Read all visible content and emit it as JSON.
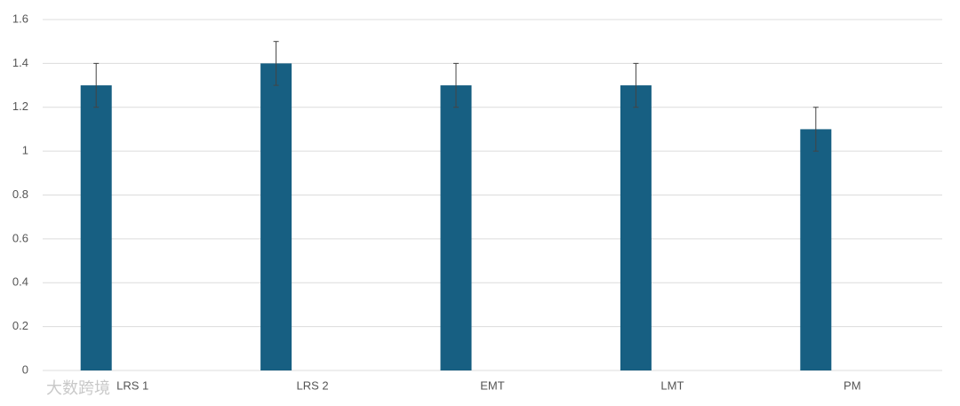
{
  "chart_data": {
    "type": "bar",
    "categories": [
      "LRS 1",
      "LRS 2",
      "EMT",
      "LMT",
      "PM"
    ],
    "values": [
      1.3,
      1.4,
      1.3,
      1.3,
      1.1
    ],
    "errors": [
      0.1,
      0.1,
      0.1,
      0.1,
      0.1
    ],
    "color": "#175f82",
    "ylim": [
      0,
      1.6
    ],
    "yticks": [
      0,
      0.2,
      0.4,
      0.6,
      0.8,
      1,
      1.2,
      1.4,
      1.6
    ],
    "grid": true
  },
  "watermark": "大数跨境"
}
